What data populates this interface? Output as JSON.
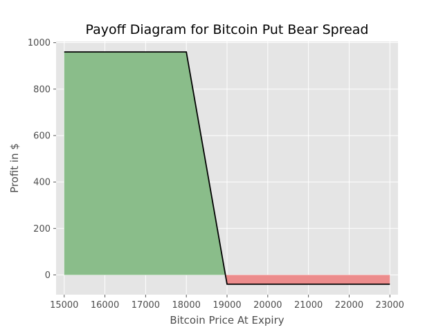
{
  "chart_data": {
    "type": "area",
    "title": "Payoff Diagram for Bitcoin Put Bear Spread",
    "xlabel": "Bitcoin Price At Expiry",
    "ylabel": "Profit in $",
    "xlim": [
      14800,
      23200
    ],
    "ylim": [
      -85,
      1005
    ],
    "xticks": [
      15000,
      16000,
      17000,
      18000,
      19000,
      20000,
      21000,
      22000,
      23000
    ],
    "yticks": [
      0,
      200,
      400,
      600,
      800,
      1000
    ],
    "grid": true,
    "legend": "none",
    "series": [
      {
        "x": [
          15000,
          18000,
          18960,
          19000,
          23000
        ],
        "y": [
          960,
          960,
          0,
          -40,
          -40
        ]
      }
    ],
    "colors": {
      "line": "#000000",
      "profit_fill": "#8abd8a",
      "loss_fill": "#ec8c8c",
      "plot_background": "#e5e5e5",
      "grid": "#ffffff"
    }
  }
}
